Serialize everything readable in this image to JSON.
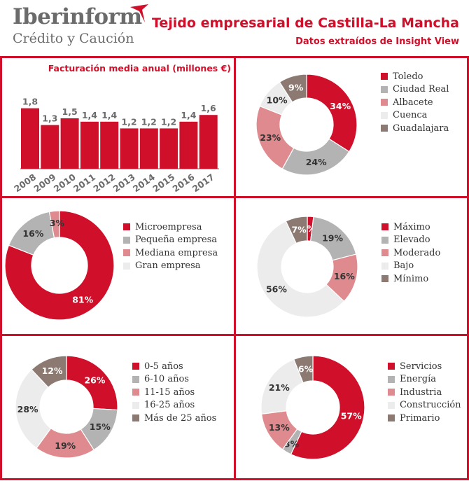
{
  "header": {
    "logo_main": "Iberinform",
    "logo_sub": "Crédito y Caución",
    "title": "Tejido empresarial de Castilla-La Mancha",
    "subtitle": "Datos extraídos de Insight View"
  },
  "colors": {
    "red": "#d0102a",
    "gray": "#b3b3b3",
    "pink": "#de8a8e",
    "light": "#ececec",
    "brown": "#8c7a72"
  },
  "chart_data": [
    {
      "type": "bar",
      "title": "Facturación media anual (millones €)",
      "categories": [
        "2008",
        "2009",
        "2010",
        "2011",
        "2012",
        "2013",
        "2014",
        "2015",
        "2016",
        "2017"
      ],
      "values": [
        1.8,
        1.3,
        1.5,
        1.4,
        1.4,
        1.2,
        1.2,
        1.2,
        1.4,
        1.6
      ],
      "value_labels": [
        "1,8",
        "1,3",
        "1,5",
        "1,4",
        "1,4",
        "1,2",
        "1,2",
        "1,2",
        "1,4",
        "1,6"
      ],
      "ylim": [
        0,
        2.0
      ],
      "color": "#d0102a"
    },
    {
      "type": "pie",
      "categories": [
        "Toledo",
        "Ciudad Real",
        "Albacete",
        "Cuenca",
        "Guadalajara"
      ],
      "values": [
        34,
        24,
        23,
        10,
        9
      ],
      "colors": [
        "#d0102a",
        "#b3b3b3",
        "#de8a8e",
        "#ececec",
        "#8c7a72"
      ],
      "legend": "right"
    },
    {
      "type": "pie",
      "categories": [
        "Microempresa",
        "Pequeña empresa",
        "Mediana empresa",
        "Gran empresa"
      ],
      "values": [
        81,
        16,
        3,
        0
      ],
      "colors": [
        "#d0102a",
        "#b3b3b3",
        "#de8a8e",
        "#ececec"
      ],
      "legend": "right"
    },
    {
      "type": "pie",
      "categories": [
        "Máximo",
        "Elevado",
        "Moderado",
        "Bajo",
        "Mínimo"
      ],
      "values": [
        2,
        19,
        16,
        56,
        7
      ],
      "colors": [
        "#d0102a",
        "#b3b3b3",
        "#de8a8e",
        "#ececec",
        "#8c7a72"
      ],
      "legend": "right"
    },
    {
      "type": "pie",
      "categories": [
        "0-5 años",
        "6-10 años",
        "11-15 años",
        "16-25 años",
        "Más de 25 años"
      ],
      "values": [
        26,
        15,
        19,
        28,
        12
      ],
      "colors": [
        "#d0102a",
        "#b3b3b3",
        "#de8a8e",
        "#ececec",
        "#8c7a72"
      ],
      "legend": "right"
    },
    {
      "type": "pie",
      "categories": [
        "Servicios",
        "Energía",
        "Industria",
        "Construcción",
        "Primario"
      ],
      "values": [
        57,
        3,
        13,
        21,
        6
      ],
      "colors": [
        "#d0102a",
        "#b3b3b3",
        "#de8a8e",
        "#ececec",
        "#8c7a72"
      ],
      "legend": "right"
    }
  ]
}
